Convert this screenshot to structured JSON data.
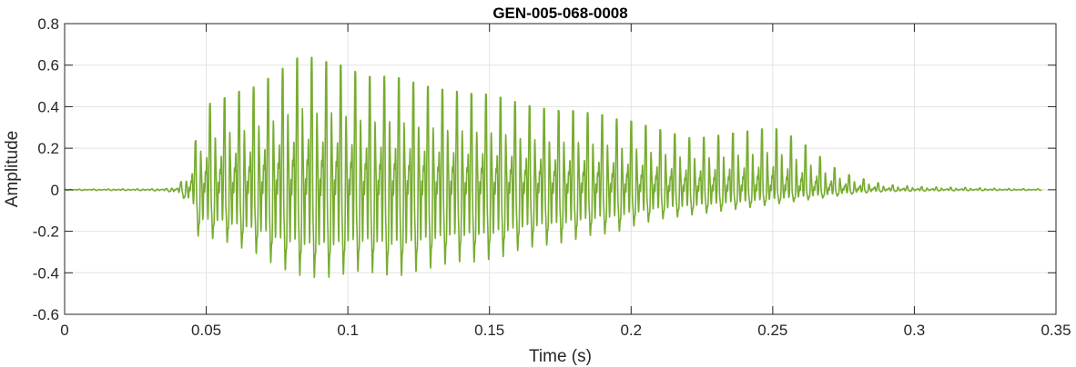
{
  "chart_data": {
    "type": "line",
    "title": "GEN-005-068-0008",
    "xlabel": "Time (s)",
    "ylabel": "Amplitude",
    "xlim": [
      0,
      0.35
    ],
    "ylim": [
      -0.6,
      0.8
    ],
    "xticks": [
      0,
      0.05,
      0.1,
      0.15,
      0.2,
      0.25,
      0.3,
      0.35
    ],
    "xtick_labels": [
      "0",
      "0.05",
      "0.1",
      "0.15",
      "0.2",
      "0.25",
      "0.3",
      "0.35"
    ],
    "yticks": [
      -0.6,
      -0.4,
      -0.2,
      0,
      0.2,
      0.4,
      0.6,
      0.8
    ],
    "ytick_labels": [
      "-0.6",
      "-0.4",
      "-0.2",
      "0",
      "0.2",
      "0.4",
      "0.6",
      "0.8"
    ],
    "grid": true,
    "line_color": "#77ac30",
    "series": [
      {
        "name": "",
        "x": [
          0.0,
          0.01,
          0.02,
          0.03,
          0.036,
          0.04,
          0.043,
          0.045,
          0.047,
          0.05,
          0.055,
          0.06,
          0.065,
          0.07,
          0.075,
          0.08,
          0.085,
          0.09,
          0.095,
          0.1,
          0.105,
          0.11,
          0.115,
          0.12,
          0.125,
          0.13,
          0.135,
          0.14,
          0.145,
          0.15,
          0.155,
          0.16,
          0.165,
          0.17,
          0.175,
          0.18,
          0.185,
          0.19,
          0.195,
          0.2,
          0.205,
          0.21,
          0.215,
          0.22,
          0.225,
          0.23,
          0.235,
          0.24,
          0.245,
          0.25,
          0.255,
          0.26,
          0.265,
          0.27,
          0.275,
          0.28,
          0.285,
          0.29,
          0.3,
          0.31,
          0.32,
          0.33,
          0.345
        ],
        "upper": [
          0.002,
          0.003,
          0.004,
          0.004,
          0.006,
          0.02,
          0.07,
          0.21,
          0.25,
          0.41,
          0.43,
          0.47,
          0.48,
          0.52,
          0.56,
          0.62,
          0.65,
          0.62,
          0.61,
          0.59,
          0.55,
          0.54,
          0.55,
          0.53,
          0.51,
          0.49,
          0.48,
          0.47,
          0.46,
          0.46,
          0.44,
          0.42,
          0.4,
          0.39,
          0.38,
          0.38,
          0.37,
          0.36,
          0.34,
          0.33,
          0.31,
          0.29,
          0.27,
          0.25,
          0.25,
          0.26,
          0.27,
          0.28,
          0.29,
          0.3,
          0.27,
          0.23,
          0.18,
          0.12,
          0.08,
          0.06,
          0.04,
          0.025,
          0.015,
          0.012,
          0.01,
          0.006,
          0.004
        ],
        "lower": [
          -0.003,
          -0.004,
          -0.004,
          -0.005,
          -0.008,
          -0.02,
          -0.06,
          -0.09,
          -0.25,
          -0.26,
          -0.27,
          -0.3,
          -0.33,
          -0.36,
          -0.42,
          -0.45,
          -0.47,
          -0.48,
          -0.47,
          -0.45,
          -0.44,
          -0.45,
          -0.47,
          -0.46,
          -0.44,
          -0.42,
          -0.4,
          -0.39,
          -0.39,
          -0.38,
          -0.36,
          -0.33,
          -0.31,
          -0.3,
          -0.29,
          -0.27,
          -0.25,
          -0.24,
          -0.23,
          -0.2,
          -0.18,
          -0.16,
          -0.15,
          -0.14,
          -0.13,
          -0.12,
          -0.11,
          -0.1,
          -0.09,
          -0.08,
          -0.07,
          -0.06,
          -0.05,
          -0.04,
          -0.03,
          -0.02,
          -0.015,
          -0.01,
          -0.008,
          -0.006,
          -0.005,
          -0.004,
          -0.003
        ]
      }
    ]
  }
}
